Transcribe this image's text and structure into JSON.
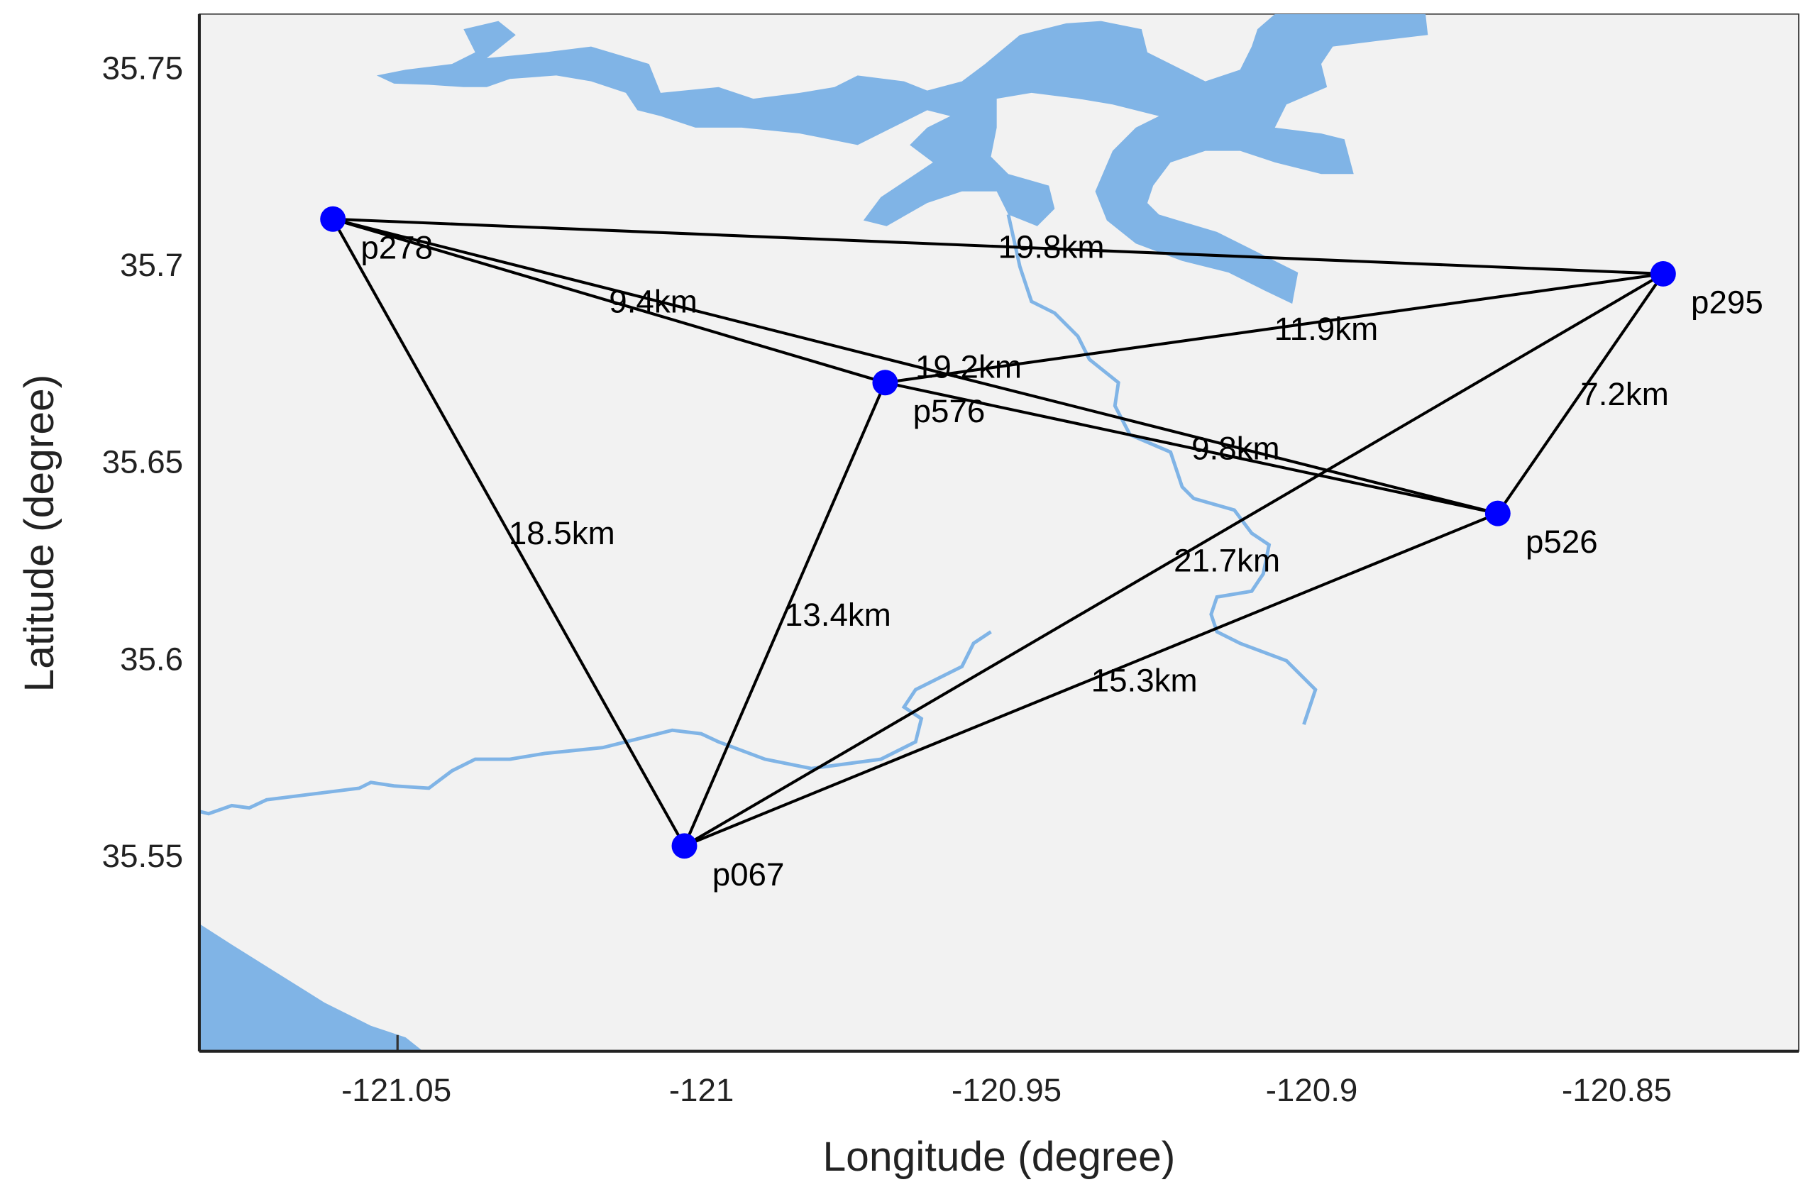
{
  "chart_data": {
    "type": "map",
    "xlabel": "Longitude (degree)",
    "ylabel": "Latitude (degree)",
    "xlim": [
      -121.0823,
      -120.8202
    ],
    "ylim": [
      35.5003,
      35.7635
    ],
    "xticks": [
      {
        "value": -121.05,
        "label": "-121.05"
      },
      {
        "value": -121.0,
        "label": "-121"
      },
      {
        "value": -120.95,
        "label": "-120.95"
      },
      {
        "value": -120.9,
        "label": "-120.9"
      },
      {
        "value": -120.85,
        "label": "-120.85"
      }
    ],
    "yticks": [
      {
        "value": 35.75,
        "label": "35.75"
      },
      {
        "value": 35.7,
        "label": "35.7"
      },
      {
        "value": 35.65,
        "label": "35.65"
      },
      {
        "value": 35.6,
        "label": "35.6"
      },
      {
        "value": 35.55,
        "label": "35.55"
      }
    ],
    "points": [
      {
        "name": "p278",
        "lon": -121.0604,
        "lat": 35.7115
      },
      {
        "name": "p295",
        "lon": -120.8424,
        "lat": 35.6976
      },
      {
        "name": "p576",
        "lon": -120.9699,
        "lat": 35.67
      },
      {
        "name": "p526",
        "lon": -120.8695,
        "lat": 35.6368
      },
      {
        "name": "p067",
        "lon": -121.0028,
        "lat": 35.5524
      }
    ],
    "edges": [
      {
        "from": "p278",
        "to": "p295",
        "label": "19.8km"
      },
      {
        "from": "p278",
        "to": "p576",
        "label": "9.4km"
      },
      {
        "from": "p278",
        "to": "p526",
        "label": "19.2km"
      },
      {
        "from": "p576",
        "to": "p295",
        "label": "11.9km"
      },
      {
        "from": "p576",
        "to": "p526",
        "label": "9.8km"
      },
      {
        "from": "p295",
        "to": "p526",
        "label": "7.2km"
      },
      {
        "from": "p278",
        "to": "p067",
        "label": "18.5km"
      },
      {
        "from": "p576",
        "to": "p067",
        "label": "13.4km"
      },
      {
        "from": "p067",
        "to": "p295",
        "label": "21.7km"
      },
      {
        "from": "p067",
        "to": "p526",
        "label": "15.3km"
      }
    ],
    "colors": {
      "background": "#f2f2f2",
      "water": "#80b4e6",
      "point": "#0000ff",
      "edge": "#000000"
    }
  }
}
